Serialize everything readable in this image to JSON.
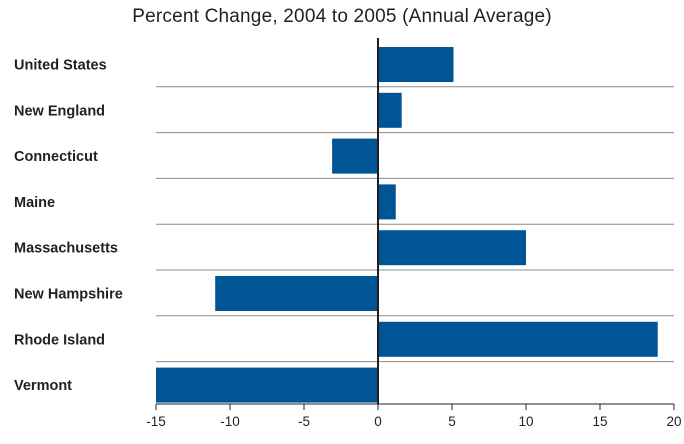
{
  "chart_data": {
    "type": "bar",
    "orientation": "horizontal",
    "title": "Percent Change, 2004 to 2005 (Annual Average)",
    "xlabel": "",
    "ylabel": "",
    "categories": [
      "United States",
      "New England",
      "Connecticut",
      "Maine",
      "Massachusetts",
      "New Hampshire",
      "Rhode Island",
      "Vermont"
    ],
    "values": [
      5.1,
      1.6,
      -3.1,
      1.2,
      10.0,
      -11.0,
      18.9,
      -15.0
    ],
    "xlim": [
      -15,
      20
    ],
    "xticks": [
      "-15",
      "-10",
      "-5",
      "0",
      "5",
      "10",
      "15",
      "20"
    ],
    "bar_color": "#005596",
    "grid": "horizontal separators between categories"
  }
}
